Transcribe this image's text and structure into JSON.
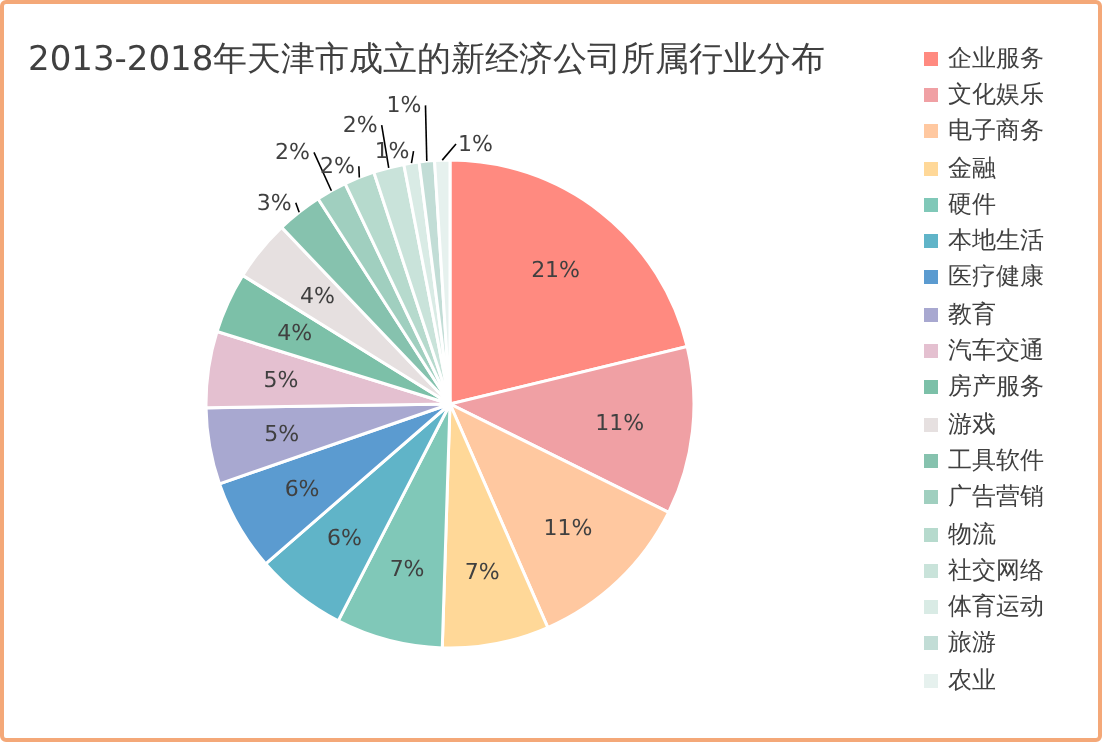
{
  "chart_data": {
    "type": "pie",
    "title": "2013-2018年天津市成立的新经济公司所属行业分布",
    "categories": [
      "企业服务",
      "文化娱乐",
      "电子商务",
      "金融",
      "硬件",
      "本地生活",
      "医疗健康",
      "教育",
      "汽车交通",
      "房产服务",
      "游戏",
      "工具软件",
      "广告营销",
      "物流",
      "社交网络",
      "体育运动",
      "旅游",
      "农业"
    ],
    "values": [
      21,
      11,
      11,
      7,
      7,
      6,
      6,
      5,
      5,
      4,
      4,
      3,
      2,
      2,
      2,
      1,
      1,
      1
    ],
    "value_labels": [
      "21%",
      "11%",
      "11%",
      "7%",
      "7%",
      "6%",
      "6%",
      "5%",
      "5%",
      "4%",
      "4%",
      "3%",
      "2%",
      "2%",
      "2%",
      "1%",
      "1%",
      "1%"
    ],
    "colors": [
      "#ff8a80",
      "#f0a0a4",
      "#ffc8a0",
      "#ffd898",
      "#80c8b8",
      "#60b4c8",
      "#5b9bd0",
      "#a8a8d0",
      "#e4c0d0",
      "#7cc0a8",
      "#e6e0e0",
      "#86c2ae",
      "#a0cfbf",
      "#b6dacd",
      "#c9e3da",
      "#d9ebe5",
      "#c2ddd6",
      "#e6f1ee"
    ],
    "legend": "right"
  }
}
